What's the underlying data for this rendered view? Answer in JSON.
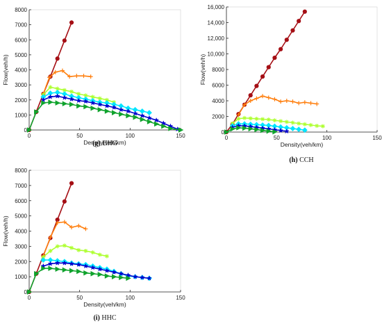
{
  "chart_data": [
    {
      "type": "line",
      "caption_letter": "(g)",
      "caption_text": " HHG",
      "xlabel": "Density(veh/km)",
      "ylabel": "Flow(veh/h)",
      "xlim": [
        0,
        150
      ],
      "ylim": [
        0,
        8000
      ],
      "xticks": [
        0,
        50,
        100,
        150
      ],
      "yticks": [
        0,
        1000,
        2000,
        3000,
        4000,
        5000,
        6000,
        7000,
        8000
      ],
      "ytick_labels": [
        "0",
        "1000",
        "2000",
        "3000",
        "4000",
        "5000",
        "6000",
        "7000",
        "8000"
      ],
      "grid": false,
      "series": [
        {
          "color": "#a50f15",
          "marker": "circle",
          "points": [
            [
              0,
              0
            ],
            [
              7,
              1200
            ],
            [
              14,
              2400
            ],
            [
              21,
              3550
            ],
            [
              28,
              4750
            ],
            [
              35,
              5950
            ],
            [
              42,
              7150
            ]
          ]
        },
        {
          "color": "#ff7f0e",
          "marker": "plus",
          "points": [
            [
              14,
              2400
            ],
            [
              20,
              3500
            ],
            [
              26,
              3850
            ],
            [
              33,
              3950
            ],
            [
              40,
              3550
            ],
            [
              47,
              3600
            ],
            [
              54,
              3600
            ],
            [
              61,
              3550
            ]
          ]
        },
        {
          "color": "#adff2f",
          "marker": "asterisk",
          "points": [
            [
              14,
              2350
            ],
            [
              21,
              2850
            ],
            [
              28,
              2750
            ],
            [
              35,
              2650
            ],
            [
              42,
              2550
            ],
            [
              49,
              2400
            ],
            [
              56,
              2300
            ],
            [
              63,
              2200
            ],
            [
              70,
              2100
            ],
            [
              77,
              2000
            ],
            [
              84,
              1850
            ]
          ]
        },
        {
          "color": "#00e5ff",
          "marker": "diamond",
          "points": [
            [
              14,
              2200
            ],
            [
              21,
              2450
            ],
            [
              28,
              2500
            ],
            [
              35,
              2400
            ],
            [
              42,
              2250
            ],
            [
              49,
              2150
            ],
            [
              56,
              2050
            ],
            [
              63,
              1950
            ],
            [
              70,
              1850
            ],
            [
              77,
              1800
            ],
            [
              84,
              1700
            ],
            [
              91,
              1600
            ],
            [
              98,
              1450
            ],
            [
              105,
              1350
            ],
            [
              112,
              1250
            ],
            [
              119,
              1150
            ]
          ]
        },
        {
          "color": "#0000cd",
          "marker": "star",
          "points": [
            [
              14,
              2000
            ],
            [
              21,
              2200
            ],
            [
              28,
              2250
            ],
            [
              35,
              2150
            ],
            [
              42,
              2050
            ],
            [
              49,
              1950
            ],
            [
              56,
              1900
            ],
            [
              63,
              1800
            ],
            [
              70,
              1700
            ],
            [
              77,
              1600
            ],
            [
              84,
              1500
            ],
            [
              91,
              1350
            ],
            [
              98,
              1250
            ],
            [
              105,
              1100
            ],
            [
              112,
              950
            ],
            [
              119,
              800
            ],
            [
              126,
              650
            ],
            [
              133,
              450
            ],
            [
              140,
              250
            ],
            [
              147,
              50
            ]
          ]
        },
        {
          "color": "#10a32d",
          "marker": "triangle-right",
          "points": [
            [
              0,
              0
            ],
            [
              7,
              1200
            ],
            [
              14,
              1800
            ],
            [
              21,
              1850
            ],
            [
              28,
              1800
            ],
            [
              35,
              1750
            ],
            [
              42,
              1700
            ],
            [
              49,
              1600
            ],
            [
              56,
              1550
            ],
            [
              63,
              1450
            ],
            [
              70,
              1350
            ],
            [
              77,
              1250
            ],
            [
              84,
              1150
            ],
            [
              91,
              1050
            ],
            [
              98,
              950
            ],
            [
              105,
              850
            ],
            [
              112,
              700
            ],
            [
              119,
              550
            ],
            [
              126,
              400
            ],
            [
              133,
              250
            ],
            [
              140,
              100
            ],
            [
              150,
              0
            ]
          ]
        }
      ]
    },
    {
      "type": "line",
      "caption_letter": "(h)",
      "caption_text": " CCH",
      "xlabel": "Density(veh/km)",
      "ylabel": "Flow(veh/h)",
      "xlim": [
        0,
        150
      ],
      "ylim": [
        0,
        16000
      ],
      "xticks": [
        0,
        50,
        100,
        150
      ],
      "yticks": [
        0,
        2000,
        4000,
        6000,
        8000,
        10000,
        12000,
        14000,
        16000
      ],
      "ytick_labels": [
        "0",
        "2000",
        "4000",
        "6000",
        "8000",
        "10,000",
        "12,000",
        "14,000",
        "16,000"
      ],
      "grid": false,
      "series": [
        {
          "color": "#a50f15",
          "marker": "circle",
          "points": [
            [
              0,
              0
            ],
            [
              6,
              1000
            ],
            [
              12,
              2300
            ],
            [
              18,
              3500
            ],
            [
              24,
              4700
            ],
            [
              30,
              5900
            ],
            [
              36,
              7100
            ],
            [
              42,
              8300
            ],
            [
              48,
              9500
            ],
            [
              54,
              10600
            ],
            [
              60,
              11800
            ],
            [
              66,
              13000
            ],
            [
              72,
              14200
            ],
            [
              78,
              15400
            ]
          ]
        },
        {
          "color": "#ff7f0e",
          "marker": "plus",
          "points": [
            [
              12,
              2200
            ],
            [
              18,
              3500
            ],
            [
              24,
              4000
            ],
            [
              30,
              4300
            ],
            [
              36,
              4600
            ],
            [
              42,
              4400
            ],
            [
              48,
              4200
            ],
            [
              54,
              3900
            ],
            [
              60,
              4000
            ],
            [
              66,
              3900
            ],
            [
              72,
              3700
            ],
            [
              78,
              3800
            ],
            [
              84,
              3700
            ],
            [
              90,
              3600
            ]
          ]
        },
        {
          "color": "#adff2f",
          "marker": "asterisk",
          "points": [
            [
              6,
              1100
            ],
            [
              12,
              1700
            ],
            [
              18,
              1800
            ],
            [
              24,
              1750
            ],
            [
              30,
              1700
            ],
            [
              36,
              1650
            ],
            [
              42,
              1600
            ],
            [
              48,
              1500
            ],
            [
              54,
              1400
            ],
            [
              60,
              1300
            ],
            [
              66,
              1200
            ],
            [
              72,
              1100
            ],
            [
              78,
              1000
            ],
            [
              84,
              900
            ],
            [
              90,
              800
            ],
            [
              96,
              750
            ]
          ]
        },
        {
          "color": "#00e5ff",
          "marker": "diamond",
          "points": [
            [
              6,
              800
            ],
            [
              12,
              1050
            ],
            [
              18,
              1050
            ],
            [
              24,
              1000
            ],
            [
              30,
              950
            ],
            [
              36,
              900
            ],
            [
              42,
              850
            ],
            [
              48,
              750
            ],
            [
              54,
              650
            ],
            [
              60,
              550
            ],
            [
              66,
              450
            ],
            [
              72,
              350
            ],
            [
              78,
              250
            ]
          ]
        },
        {
          "color": "#0000cd",
          "marker": "star",
          "points": [
            [
              6,
              600
            ],
            [
              12,
              800
            ],
            [
              18,
              780
            ],
            [
              24,
              700
            ],
            [
              30,
              600
            ],
            [
              36,
              500
            ],
            [
              42,
              400
            ],
            [
              48,
              300
            ],
            [
              54,
              200
            ],
            [
              60,
              100
            ]
          ]
        },
        {
          "color": "#10a32d",
          "marker": "triangle-right",
          "points": [
            [
              0,
              0
            ],
            [
              6,
              400
            ],
            [
              12,
              550
            ],
            [
              18,
              500
            ],
            [
              24,
              420
            ],
            [
              30,
              320
            ],
            [
              36,
              220
            ],
            [
              42,
              120
            ],
            [
              48,
              30
            ]
          ]
        }
      ]
    },
    {
      "type": "line",
      "caption_letter": "(i)",
      "caption_text": " HHC",
      "xlabel": "Density(veh/km)",
      "ylabel": "Flow(veh/h)",
      "xlim": [
        0,
        150
      ],
      "ylim": [
        0,
        8000
      ],
      "xticks": [
        0,
        50,
        100,
        150
      ],
      "yticks": [
        0,
        1000,
        2000,
        3000,
        4000,
        5000,
        6000,
        7000,
        8000
      ],
      "ytick_labels": [
        "0",
        "1000",
        "2000",
        "3000",
        "4000",
        "5000",
        "6000",
        "7000",
        "8000"
      ],
      "grid": false,
      "series": [
        {
          "color": "#a50f15",
          "marker": "circle",
          "points": [
            [
              0,
              0
            ],
            [
              7,
              1200
            ],
            [
              14,
              2400
            ],
            [
              21,
              3550
            ],
            [
              28,
              4750
            ],
            [
              35,
              5950
            ],
            [
              42,
              7150
            ]
          ]
        },
        {
          "color": "#ff7f0e",
          "marker": "plus",
          "points": [
            [
              14,
              2350
            ],
            [
              21,
              3600
            ],
            [
              28,
              4550
            ],
            [
              35,
              4600
            ],
            [
              42,
              4250
            ],
            [
              49,
              4350
            ],
            [
              56,
              4150
            ]
          ]
        },
        {
          "color": "#adff2f",
          "marker": "asterisk",
          "points": [
            [
              14,
              2300
            ],
            [
              21,
              2700
            ],
            [
              28,
              3000
            ],
            [
              35,
              3050
            ],
            [
              42,
              2900
            ],
            [
              49,
              2750
            ],
            [
              56,
              2700
            ],
            [
              63,
              2600
            ],
            [
              70,
              2450
            ],
            [
              77,
              2350
            ]
          ]
        },
        {
          "color": "#00e5ff",
          "marker": "diamond",
          "points": [
            [
              14,
              2100
            ],
            [
              21,
              2100
            ],
            [
              28,
              2050
            ],
            [
              35,
              2000
            ],
            [
              42,
              1900
            ],
            [
              49,
              1850
            ],
            [
              56,
              1800
            ],
            [
              63,
              1700
            ],
            [
              70,
              1600
            ],
            [
              77,
              1500
            ],
            [
              84,
              1350
            ],
            [
              91,
              1200
            ],
            [
              98,
              1050
            ],
            [
              105,
              1000
            ],
            [
              112,
              950
            ],
            [
              119,
              900
            ]
          ]
        },
        {
          "color": "#0000cd",
          "marker": "star",
          "points": [
            [
              14,
              1700
            ],
            [
              21,
              1850
            ],
            [
              28,
              1900
            ],
            [
              35,
              1900
            ],
            [
              42,
              1850
            ],
            [
              49,
              1800
            ],
            [
              56,
              1700
            ],
            [
              63,
              1600
            ],
            [
              70,
              1500
            ],
            [
              77,
              1400
            ],
            [
              84,
              1300
            ],
            [
              91,
              1200
            ],
            [
              98,
              1100
            ],
            [
              105,
              1000
            ],
            [
              112,
              950
            ],
            [
              119,
              900
            ]
          ]
        },
        {
          "color": "#10a32d",
          "marker": "triangle-right",
          "points": [
            [
              0,
              0
            ],
            [
              7,
              1200
            ],
            [
              14,
              1550
            ],
            [
              21,
              1550
            ],
            [
              28,
              1500
            ],
            [
              35,
              1450
            ],
            [
              42,
              1400
            ],
            [
              49,
              1350
            ],
            [
              56,
              1250
            ],
            [
              63,
              1200
            ],
            [
              70,
              1150
            ],
            [
              77,
              1050
            ],
            [
              84,
              1000
            ],
            [
              91,
              950
            ],
            [
              98,
              900
            ]
          ]
        }
      ]
    }
  ]
}
